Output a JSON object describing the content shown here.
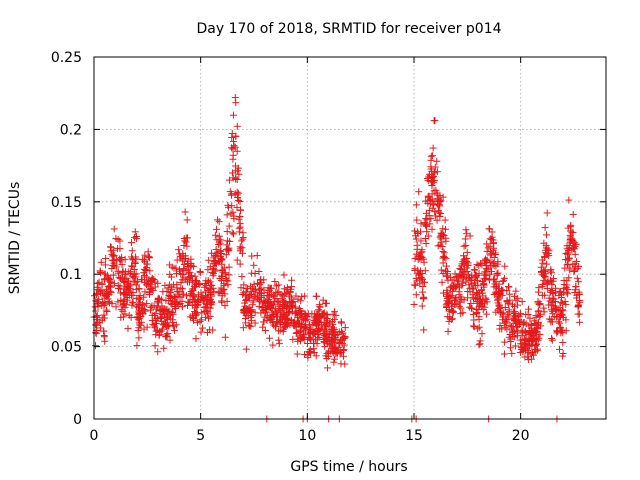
{
  "chart_data": {
    "type": "scatter",
    "title": "Day 170 of 2018, SRMTID for receiver p014",
    "xlabel": "GPS time / hours",
    "ylabel": "SRMTID / TECUs",
    "xlim": [
      0,
      24
    ],
    "ylim": [
      0,
      0.25
    ],
    "x_ticks": [
      0,
      5,
      10,
      15,
      20
    ],
    "x_tick_labels": [
      "0",
      "5",
      "10",
      "15",
      "20"
    ],
    "y_ticks": [
      0,
      0.05,
      0.1,
      0.15,
      0.2,
      0.25
    ],
    "y_tick_labels": [
      "0",
      "0.05",
      "0.1",
      "0.15",
      "0.2",
      "0.25"
    ],
    "grid": true,
    "marker": "plus",
    "series_color": "#e41a1c",
    "zero_markers_x": [
      8.1,
      9.8,
      10.0,
      11.0,
      11.5,
      14.9,
      15.1,
      18.5,
      21.7
    ],
    "series": [
      {
        "name": "SRMTID",
        "segments": [
          {
            "range": [
              0.0,
              0.5
            ],
            "base": 0.06,
            "spread": 0.025,
            "peaks": [
              [
                0.3,
                0.03
              ]
            ]
          },
          {
            "range": [
              0.5,
              2.0
            ],
            "base": 0.085,
            "spread": 0.028,
            "peaks": [
              [
                1.0,
                0.035
              ],
              [
                2.0,
                0.03
              ]
            ]
          },
          {
            "range": [
              2.0,
              3.5
            ],
            "base": 0.07,
            "spread": 0.025,
            "peaks": [
              [
                2.5,
                0.04
              ]
            ]
          },
          {
            "range": [
              3.5,
              5.0
            ],
            "base": 0.08,
            "spread": 0.028,
            "peaks": [
              [
                4.3,
                0.04
              ]
            ]
          },
          {
            "range": [
              5.0,
              6.2
            ],
            "base": 0.08,
            "spread": 0.025,
            "peaks": [
              [
                5.8,
                0.05
              ]
            ]
          },
          {
            "range": [
              6.2,
              7.0
            ],
            "base": 0.1,
            "spread": 0.035,
            "peaks": [
              [
                6.6,
                0.11
              ]
            ]
          },
          {
            "range": [
              7.0,
              9.0
            ],
            "base": 0.075,
            "spread": 0.022,
            "peaks": [
              [
                7.6,
                0.025
              ]
            ]
          },
          {
            "range": [
              9.0,
              10.0
            ],
            "base": 0.065,
            "spread": 0.02,
            "peaks": [
              [
                9.2,
                0.02
              ]
            ]
          },
          {
            "range": [
              10.0,
              11.8
            ],
            "base": 0.055,
            "spread": 0.02,
            "peaks": [
              [
                10.6,
                0.02
              ]
            ]
          },
          {
            "range": [
              15.0,
              15.5
            ],
            "base": 0.08,
            "spread": 0.03,
            "peaks": [
              [
                15.2,
                0.05
              ]
            ]
          },
          {
            "range": [
              15.5,
              16.5
            ],
            "base": 0.12,
            "spread": 0.035,
            "peaks": [
              [
                15.9,
                0.07
              ]
            ]
          },
          {
            "range": [
              16.5,
              18.0
            ],
            "base": 0.085,
            "spread": 0.03,
            "peaks": [
              [
                17.4,
                0.03
              ]
            ]
          },
          {
            "range": [
              18.0,
              19.5
            ],
            "base": 0.08,
            "spread": 0.03,
            "peaks": [
              [
                18.6,
                0.05
              ]
            ]
          },
          {
            "range": [
              19.5,
              20.8
            ],
            "base": 0.055,
            "spread": 0.02,
            "peaks": [
              [
                19.8,
                0.02
              ]
            ]
          },
          {
            "range": [
              20.8,
              22.0
            ],
            "base": 0.07,
            "spread": 0.028,
            "peaks": [
              [
                21.2,
                0.05
              ]
            ]
          },
          {
            "range": [
              22.0,
              22.8
            ],
            "base": 0.085,
            "spread": 0.03,
            "peaks": [
              [
                22.4,
                0.05
              ]
            ]
          }
        ]
      }
    ]
  }
}
